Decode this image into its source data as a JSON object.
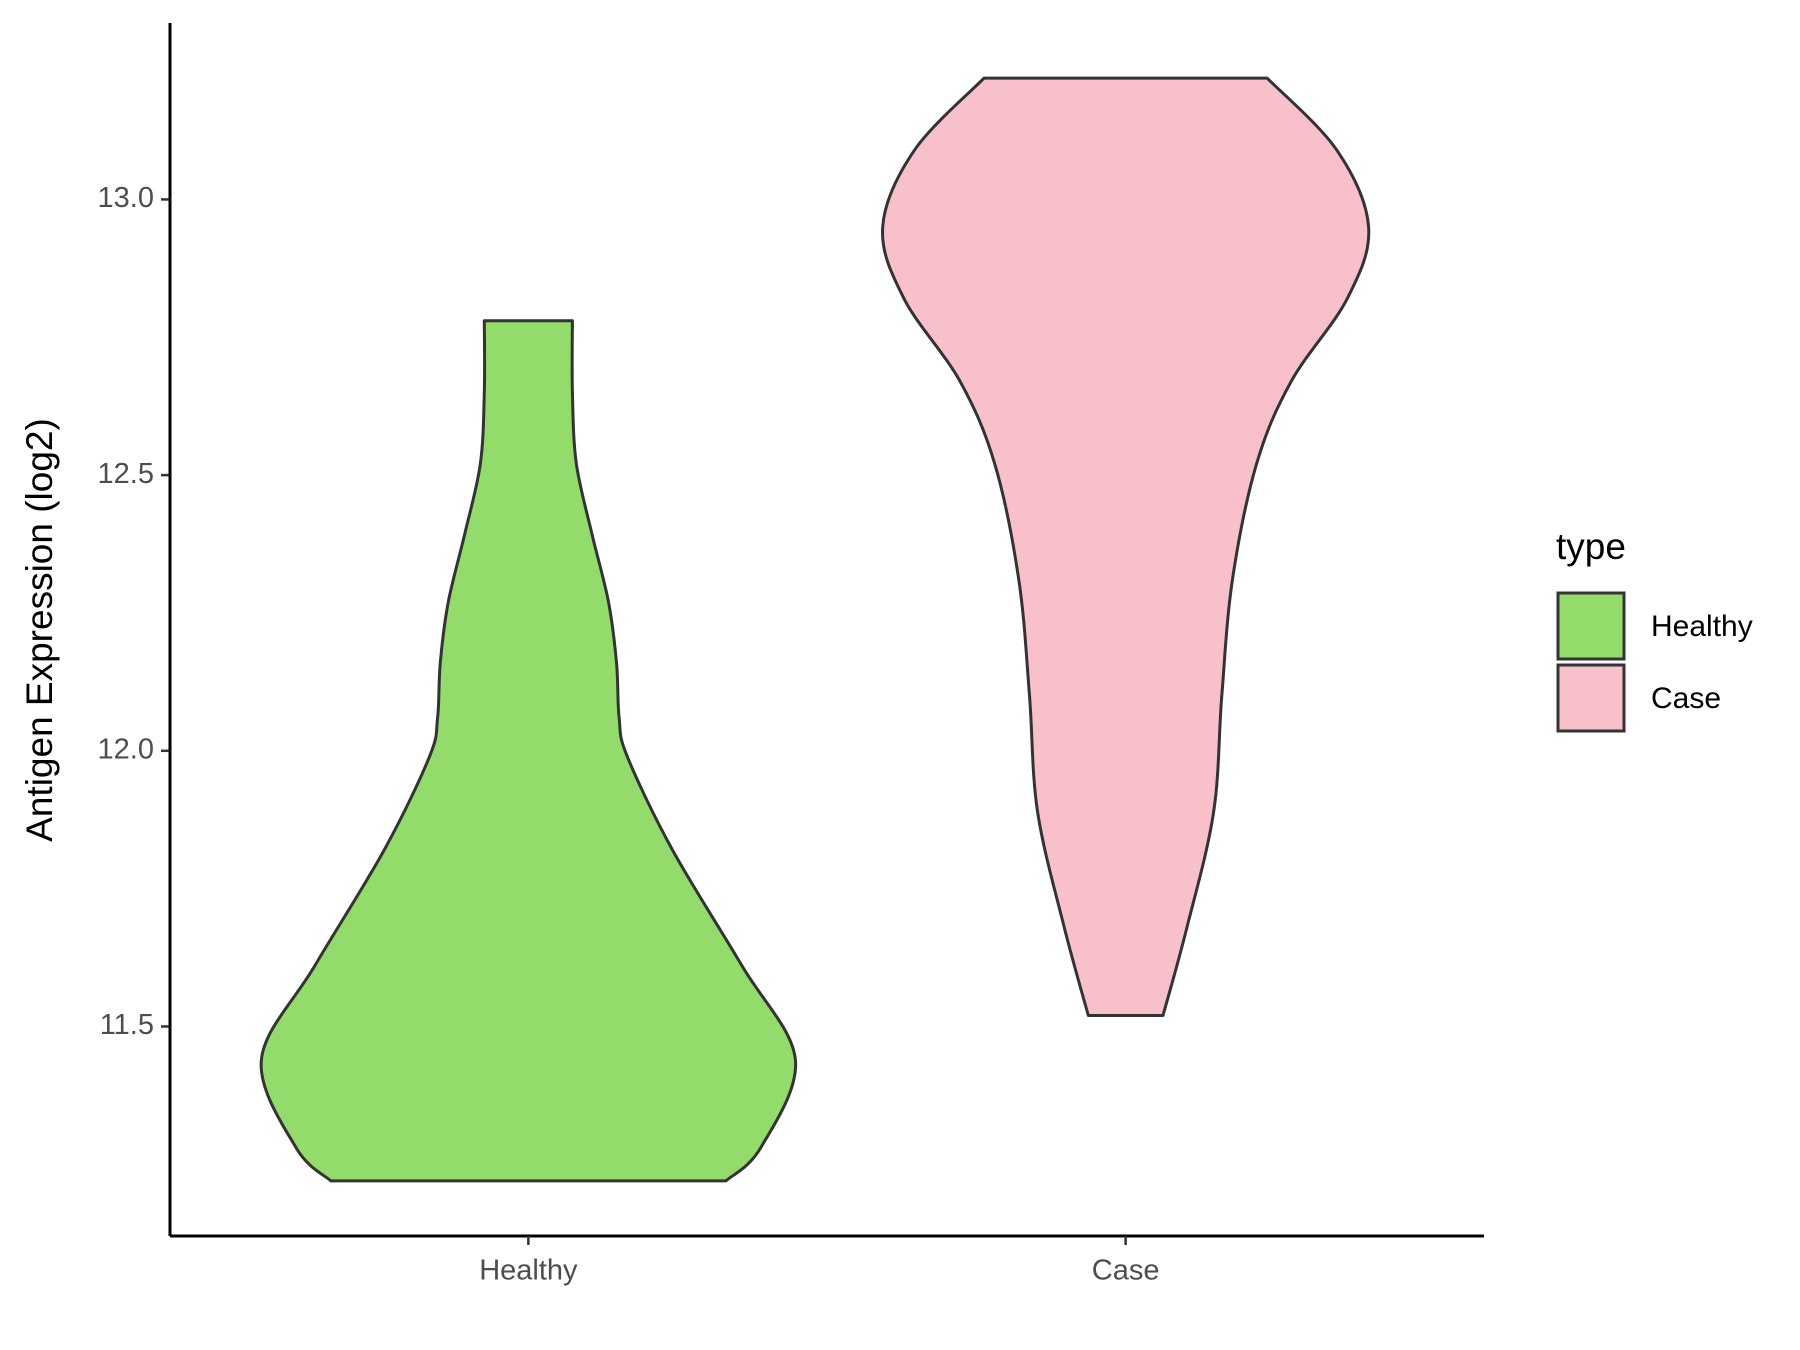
{
  "chart_data": {
    "type": "violin",
    "y_label": "Antigen Expression (log2)",
    "legend_title": "type",
    "categories": [
      "Healthy",
      "Case"
    ],
    "ylim": [
      11.12,
      13.32
    ],
    "yticks": [
      11.5,
      {
        "value": 12,
        "label": "12.0"
      },
      12.5,
      {
        "value": 13,
        "label": "13.0"
      }
    ],
    "series": [
      {
        "name": "Healthy",
        "color": "#93db6a",
        "y": [
          11.22,
          11.28,
          11.44,
          11.61,
          11.82,
          11.99,
          12.06,
          12.16,
          12.27,
          12.39,
          12.52,
          12.65,
          12.78
        ],
        "density": [
          0.74,
          0.87,
          1.0,
          0.8,
          0.54,
          0.37,
          0.34,
          0.33,
          0.3,
          0.24,
          0.18,
          0.165,
          0.165
        ]
      },
      {
        "name": "Case",
        "color": "#f7c0cb",
        "y": [
          11.52,
          11.68,
          11.89,
          12.1,
          12.31,
          12.52,
          12.67,
          12.82,
          12.95,
          13.09,
          13.22
        ],
        "density": [
          0.14,
          0.23,
          0.33,
          0.36,
          0.4,
          0.49,
          0.62,
          0.83,
          0.91,
          0.79,
          0.53
        ]
      }
    ]
  }
}
